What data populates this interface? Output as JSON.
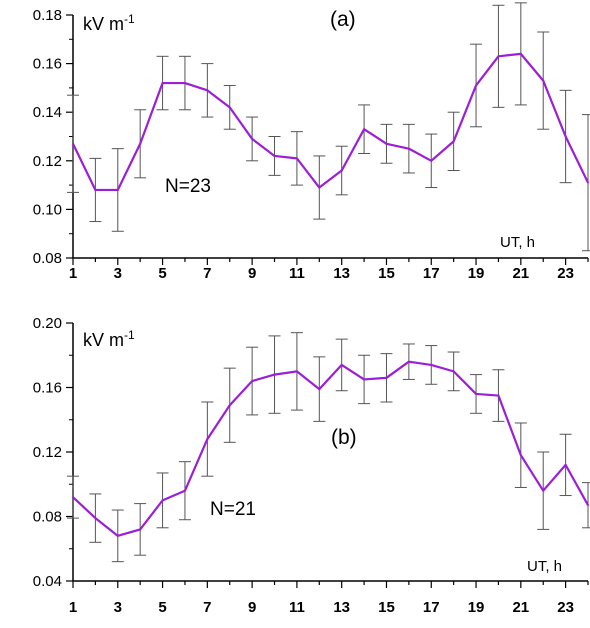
{
  "chart_data": [
    {
      "panel_label": "(a)",
      "type": "line",
      "unit_label": "kV m",
      "unit_exponent": "-1",
      "xlabel": "UT, h",
      "annotation": "N=23",
      "ylim": [
        0.08,
        0.18
      ],
      "yticks": [
        "0.08",
        "0.10",
        "0.12",
        "0.14",
        "0.16",
        "0.18"
      ],
      "yticks_values": [
        0.08,
        0.1,
        0.12,
        0.14,
        0.16,
        0.18
      ],
      "xlim": [
        1,
        24
      ],
      "xtick_labels": [
        "1",
        "3",
        "5",
        "7",
        "9",
        "11",
        "13",
        "15",
        "17",
        "19",
        "21",
        "23"
      ],
      "color": "#9b1fd6",
      "x": [
        1,
        2,
        3,
        4,
        5,
        6,
        7,
        8,
        9,
        10,
        11,
        12,
        13,
        14,
        15,
        16,
        17,
        18,
        19,
        20,
        21,
        22,
        23,
        24
      ],
      "values": [
        0.127,
        0.108,
        0.108,
        0.127,
        0.152,
        0.152,
        0.149,
        0.142,
        0.129,
        0.122,
        0.121,
        0.109,
        0.116,
        0.133,
        0.127,
        0.125,
        0.12,
        0.128,
        0.151,
        0.163,
        0.164,
        0.153,
        0.13,
        0.111
      ],
      "error": [
        0.02,
        0.013,
        0.017,
        0.014,
        0.011,
        0.011,
        0.011,
        0.009,
        0.009,
        0.008,
        0.011,
        0.013,
        0.01,
        0.01,
        0.008,
        0.01,
        0.011,
        0.012,
        0.017,
        0.021,
        0.021,
        0.02,
        0.019,
        0.028
      ]
    },
    {
      "panel_label": "(b)",
      "type": "line",
      "unit_label": "kV m",
      "unit_exponent": "-1",
      "xlabel": "UT, h",
      "annotation": "N=21",
      "ylim": [
        0.04,
        0.2
      ],
      "yticks": [
        "0.04",
        "0.08",
        "0.12",
        "0.16",
        "0.20"
      ],
      "yticks_values": [
        0.04,
        0.08,
        0.12,
        0.16,
        0.2
      ],
      "xlim": [
        1,
        24
      ],
      "xtick_labels": [
        "1",
        "3",
        "5",
        "7",
        "9",
        "11",
        "13",
        "15",
        "17",
        "19",
        "21",
        "23"
      ],
      "color": "#9b1fd6",
      "x": [
        1,
        2,
        3,
        4,
        5,
        6,
        7,
        8,
        9,
        10,
        11,
        12,
        13,
        14,
        15,
        16,
        17,
        18,
        19,
        20,
        21,
        22,
        23,
        24
      ],
      "values": [
        0.092,
        0.079,
        0.068,
        0.072,
        0.09,
        0.096,
        0.128,
        0.149,
        0.164,
        0.168,
        0.17,
        0.159,
        0.174,
        0.165,
        0.166,
        0.176,
        0.174,
        0.17,
        0.156,
        0.155,
        0.118,
        0.096,
        0.112,
        0.087
      ],
      "error": [
        0.013,
        0.015,
        0.016,
        0.016,
        0.017,
        0.018,
        0.023,
        0.023,
        0.021,
        0.024,
        0.024,
        0.02,
        0.016,
        0.015,
        0.015,
        0.011,
        0.012,
        0.012,
        0.012,
        0.016,
        0.02,
        0.024,
        0.019,
        0.014
      ]
    }
  ]
}
